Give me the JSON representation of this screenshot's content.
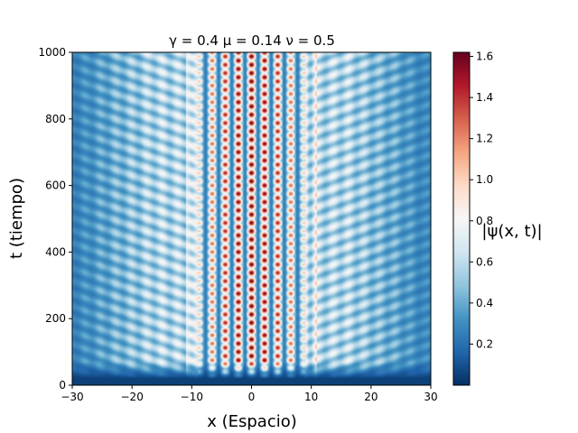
{
  "chart_data": {
    "type": "heatmap",
    "title": "γ = 0.4  μ = 0.14  ν = 0.5",
    "xlabel": "x (Espacio)",
    "ylabel": "t (tiempo)",
    "colorbar_label": "|ψ(x, t)|",
    "colormap": "RdBu_r",
    "xlim": [
      -30,
      30
    ],
    "ylim": [
      0,
      1000
    ],
    "clim": [
      0,
      1.62
    ],
    "x_ticks": [
      -30,
      -20,
      -10,
      0,
      10,
      20,
      30
    ],
    "y_ticks": [
      0,
      200,
      400,
      600,
      800,
      1000
    ],
    "colorbar_ticks": [
      0.2,
      0.4,
      0.6,
      0.8,
      1.0,
      1.2,
      1.4,
      1.6
    ],
    "x_tick_labels": [
      "−30",
      "−20",
      "−10",
      "0",
      "10",
      "20",
      "30"
    ],
    "y_tick_labels": [
      "0",
      "200",
      "400",
      "600",
      "800",
      "1000"
    ],
    "colorbar_tick_labels": [
      "0.2",
      "0.4",
      "0.6",
      "0.8",
      "1.0",
      "1.2",
      "1.4",
      "1.6"
    ],
    "pattern": {
      "core_half_width": 9,
      "core_peak": 1.62,
      "background_level": 0.35,
      "transient_end_t": 50
    }
  }
}
